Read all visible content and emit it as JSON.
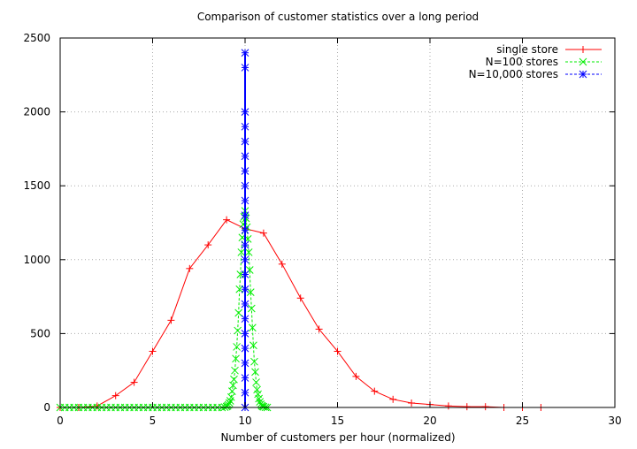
{
  "chart_data": {
    "type": "line",
    "title": "Comparison of customer statistics over a long period",
    "xlabel": "Number of customers per hour (normalized)",
    "ylabel": "",
    "xlim": [
      0,
      30
    ],
    "ylim": [
      0,
      2500
    ],
    "xticks": [
      0,
      5,
      10,
      15,
      20,
      25,
      30
    ],
    "yticks": [
      0,
      500,
      1000,
      1500,
      2000,
      2500
    ],
    "xtick_labels": [
      "0",
      "5",
      "10",
      "15",
      "20",
      "25",
      "30"
    ],
    "ytick_labels": [
      "0",
      "500",
      "1000",
      "1500",
      "2000",
      "2500"
    ],
    "grid": true,
    "legend_position": "top-right",
    "series": [
      {
        "name": "single store",
        "color": "#ff0000",
        "marker": "plus",
        "line": "solid",
        "x": [
          0,
          1,
          2,
          3,
          4,
          5,
          6,
          7,
          8,
          9,
          10,
          11,
          12,
          13,
          14,
          15,
          16,
          17,
          18,
          19,
          20,
          21,
          22,
          23,
          24,
          25,
          26
        ],
        "y": [
          0,
          0,
          10,
          80,
          170,
          380,
          590,
          940,
          1100,
          1270,
          1210,
          1180,
          970,
          740,
          530,
          380,
          210,
          110,
          55,
          30,
          20,
          10,
          5,
          5,
          0,
          0,
          0
        ]
      },
      {
        "name": "N=100 stores",
        "color": "#00ee00",
        "marker": "x",
        "line": "dashed",
        "x": [
          0,
          0.25,
          0.5,
          0.75,
          1,
          1.25,
          1.5,
          1.75,
          2,
          2.25,
          2.5,
          2.75,
          3,
          3.25,
          3.5,
          3.75,
          4,
          4.25,
          4.5,
          4.75,
          5,
          5.25,
          5.5,
          5.75,
          6,
          6.25,
          6.5,
          6.75,
          7,
          7.25,
          7.5,
          7.75,
          8,
          8.25,
          8.5,
          8.75,
          8.9,
          9.0,
          9.05,
          9.1,
          9.15,
          9.2,
          9.25,
          9.3,
          9.35,
          9.4,
          9.45,
          9.5,
          9.55,
          9.6,
          9.65,
          9.7,
          9.75,
          9.8,
          9.85,
          9.9,
          9.95,
          10.0,
          10.05,
          10.1,
          10.15,
          10.2,
          10.25,
          10.3,
          10.35,
          10.4,
          10.45,
          10.5,
          10.55,
          10.6,
          10.65,
          10.7,
          10.75,
          10.8,
          10.85,
          10.9,
          10.95,
          11.0,
          11.1,
          11.2
        ],
        "y": [
          0,
          0,
          0,
          0,
          0,
          0,
          0,
          0,
          0,
          0,
          0,
          0,
          0,
          0,
          0,
          0,
          0,
          0,
          0,
          0,
          0,
          0,
          0,
          0,
          0,
          0,
          0,
          0,
          0,
          0,
          0,
          0,
          0,
          0,
          0,
          0,
          2,
          6,
          10,
          18,
          30,
          45,
          70,
          110,
          150,
          190,
          250,
          330,
          410,
          520,
          640,
          800,
          900,
          1050,
          1150,
          1240,
          1290,
          1330,
          1280,
          1220,
          1140,
          1050,
          930,
          780,
          670,
          540,
          420,
          310,
          240,
          170,
          120,
          90,
          60,
          38,
          22,
          12,
          7,
          4,
          1,
          0
        ]
      },
      {
        "name": "N=10,000 stores",
        "color": "#0000ff",
        "marker": "star",
        "line": "dashed",
        "x": [
          10,
          10,
          10,
          10,
          10,
          10,
          10,
          10,
          10,
          10,
          10,
          10,
          10,
          10,
          10,
          10,
          10,
          10,
          10,
          10,
          10,
          10,
          10
        ],
        "y": [
          0,
          100,
          200,
          300,
          400,
          500,
          600,
          700,
          800,
          900,
          1000,
          1100,
          1200,
          1300,
          1400,
          1500,
          1600,
          1700,
          1800,
          1900,
          2000,
          2300,
          2400
        ]
      }
    ]
  }
}
